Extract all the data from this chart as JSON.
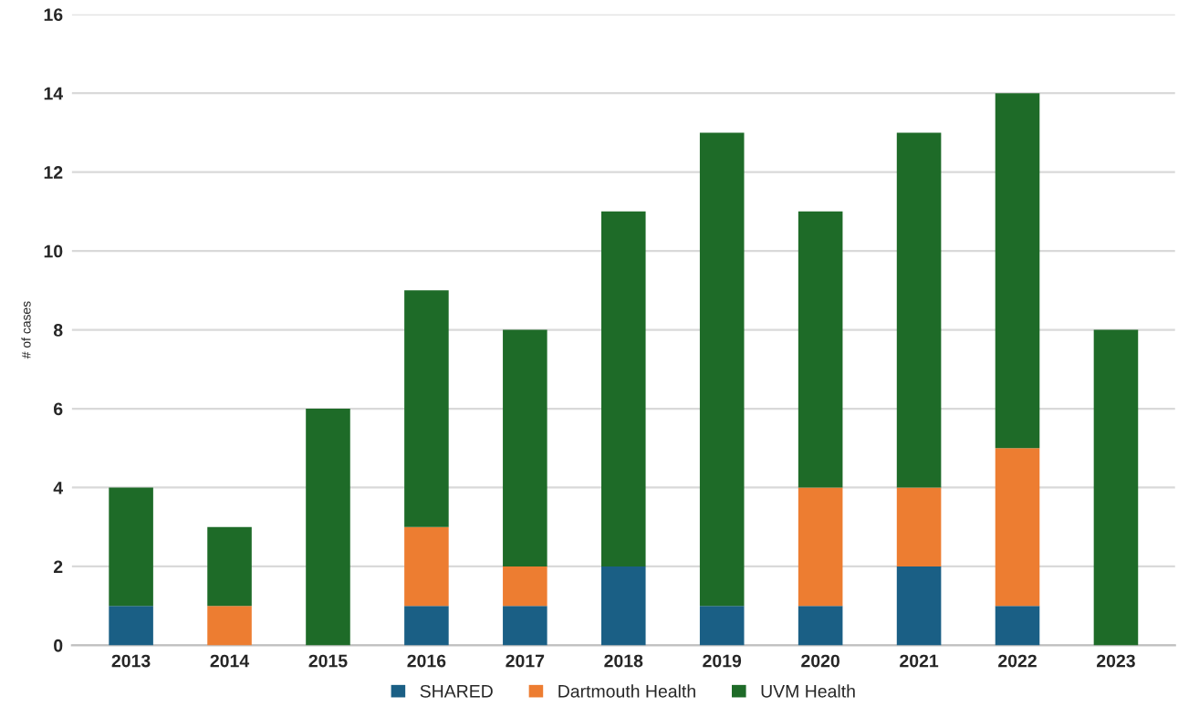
{
  "chart_data": {
    "type": "bar",
    "stacked": true,
    "ylabel": "# of cases",
    "categories": [
      "2013",
      "2014",
      "2015",
      "2016",
      "2017",
      "2018",
      "2019",
      "2020",
      "2021",
      "2022",
      "2023"
    ],
    "series": [
      {
        "name": "SHARED",
        "color": "#1a5f85",
        "values": [
          1,
          0,
          0,
          1,
          1,
          2,
          1,
          1,
          2,
          1,
          0
        ]
      },
      {
        "name": "Dartmouth Health",
        "color": "#ed7d31",
        "values": [
          0,
          1,
          0,
          2,
          1,
          0,
          0,
          3,
          2,
          4,
          0
        ]
      },
      {
        "name": "UVM Health",
        "color": "#1e6b28",
        "values": [
          3,
          2,
          6,
          6,
          6,
          9,
          12,
          7,
          9,
          9,
          8
        ]
      }
    ],
    "ylim": [
      0,
      16
    ],
    "yticks": [
      0,
      2,
      4,
      6,
      8,
      10,
      12,
      14,
      16
    ],
    "grid": "y",
    "legend": "bottom"
  }
}
